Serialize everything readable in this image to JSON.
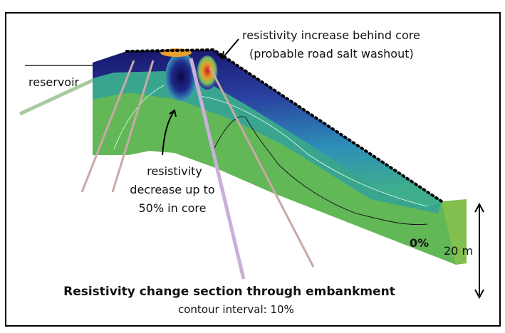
{
  "annotations": {
    "core_increase": [
      "resistivity increase behind core",
      "(probable road salt washout)"
    ],
    "reservoir": "reservoir",
    "core_decrease": [
      "resistivity",
      "decrease up to",
      "50% in core"
    ],
    "zero_contour": "0%",
    "scale": "20 m"
  },
  "caption": {
    "title": "Resistivity change section through embankment",
    "subtitle": "contour interval: 10%"
  }
}
